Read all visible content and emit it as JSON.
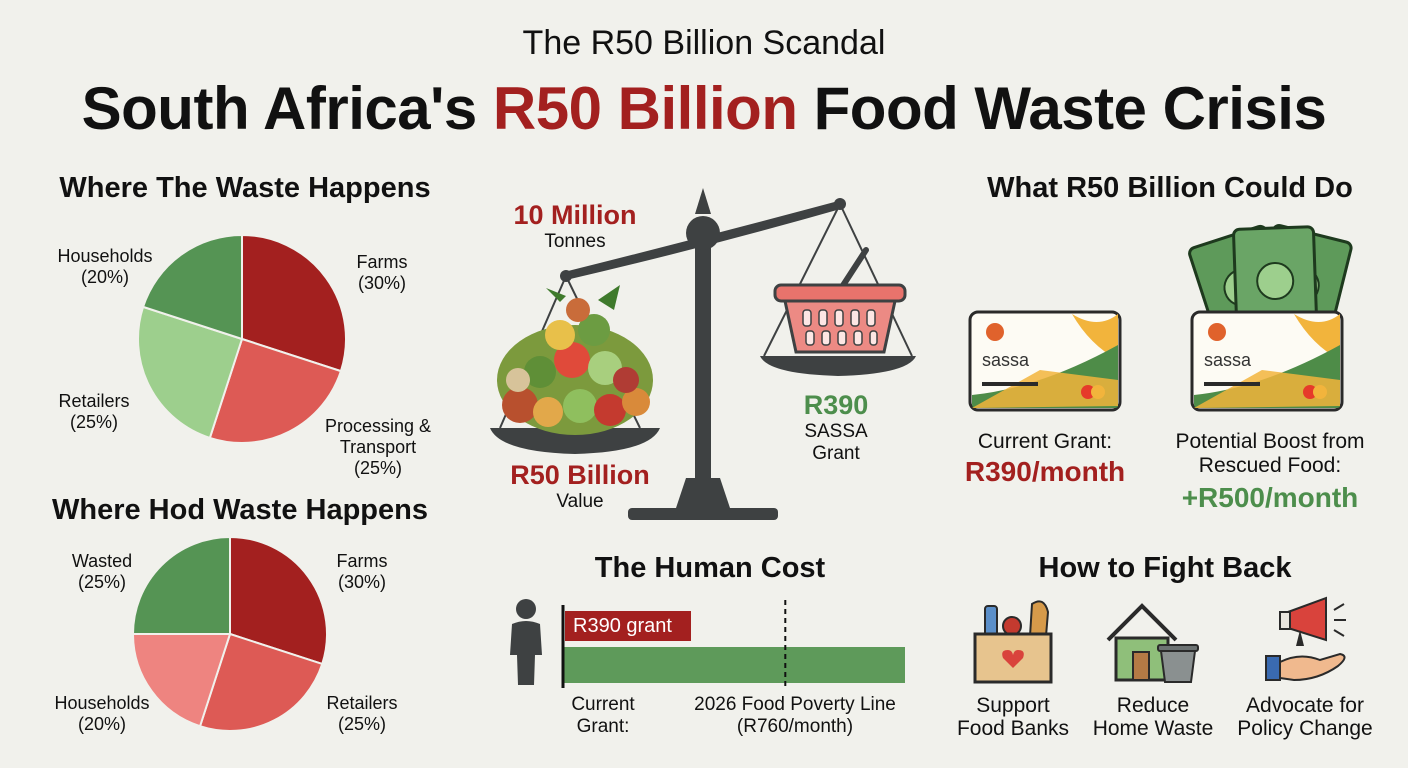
{
  "header": {
    "supertitle": "The R50 Billion Scandal",
    "title_prefix": "South Africa's ",
    "title_highlight": "R50 Billion",
    "title_suffix": " Food Waste Crisis"
  },
  "colors": {
    "dark_red": "#a3201f",
    "salmon": "#dd5a55",
    "light_red": "#ee8480",
    "dark_green": "#559454",
    "light_green": "#9dcf8d",
    "bar_green": "#5e9a5a",
    "scale_grey": "#3e4142"
  },
  "chart_data": [
    {
      "type": "pie",
      "title": "Where The Waste Happens",
      "slices": [
        {
          "label": "Farms",
          "pct_label": "(30%)",
          "value": 30,
          "color": "#a3201f"
        },
        {
          "label": "Processing & Transport",
          "pct_label": "(25%)",
          "value": 25,
          "color": "#dd5a55"
        },
        {
          "label": "Retailers",
          "pct_label": "(25%)",
          "value": 25,
          "color": "#9dcf8d"
        },
        {
          "label": "Households",
          "pct_label": "(20%)",
          "value": 20,
          "color": "#559454"
        }
      ]
    },
    {
      "type": "pie",
      "title": "Where Hod Waste Happens",
      "slices": [
        {
          "label": "Farms",
          "pct_label": "(30%)",
          "value": 30,
          "color": "#a3201f"
        },
        {
          "label": "Retailers",
          "pct_label": "(25%)",
          "value": 25,
          "color": "#dd5a55"
        },
        {
          "label": "Households",
          "pct_label": "(20%)",
          "value": 20,
          "color": "#ee8480"
        },
        {
          "label": "Wasted",
          "pct_label": "(25%)",
          "value": 25,
          "color": "#559454"
        }
      ]
    },
    {
      "type": "bar",
      "title": "The Human Cost",
      "bar_label": "R390 grant",
      "grant_value": 390,
      "poverty_line_value": 760,
      "xlabel_left": "Current Grant:",
      "xlabel_right": "2026 Food Poverty Line (R760/month)"
    }
  ],
  "scale": {
    "left_top_big": "10 Million",
    "left_top_small": "Tonnes",
    "left_bottom_big": "R50 Billion",
    "left_bottom_small": "Value",
    "right_big": "R390",
    "right_small_1": "SASSA",
    "right_small_2": "Grant"
  },
  "could_do": {
    "title": "What R50 Billion Could Do",
    "card_brand": "sassa",
    "left_caption": "Current Grant:",
    "left_value": "R390/month",
    "right_caption_1": "Potential Boost from",
    "right_caption_2": "Rescued Food:",
    "right_value": "+R500/month"
  },
  "fight_back": {
    "title": "How to Fight Back",
    "items": [
      {
        "line1": "Support",
        "line2": "Food Banks"
      },
      {
        "line1": "Reduce",
        "line2": "Home Waste"
      },
      {
        "line1": "Advocate for",
        "line2": "Policy Change"
      }
    ]
  }
}
